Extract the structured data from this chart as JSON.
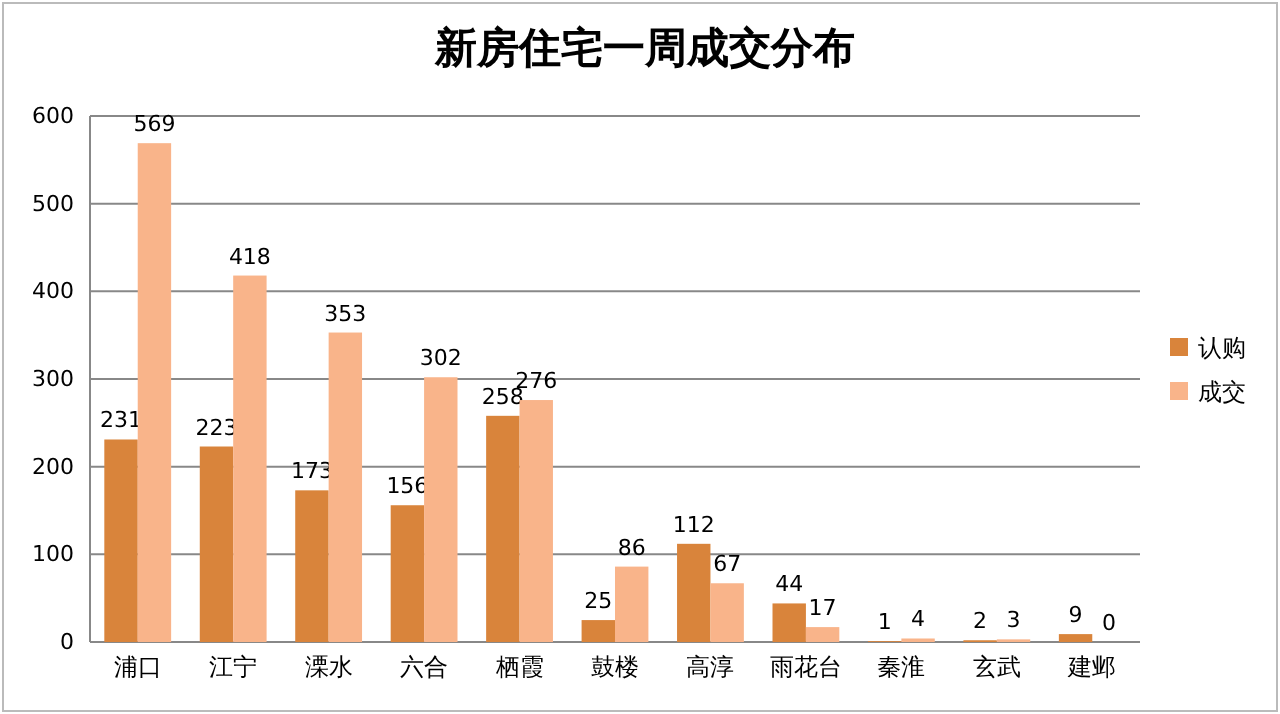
{
  "chart_data": {
    "type": "bar",
    "title": "新房住宅一周成交分布",
    "categories": [
      "浦口",
      "江宁",
      "溧水",
      "六合",
      "栖霞",
      "鼓楼",
      "高淳",
      "雨花台",
      "秦淮",
      "玄武",
      "建邺"
    ],
    "series": [
      {
        "name": "认购",
        "color": "#d9843b",
        "values": [
          231,
          223,
          173,
          156,
          258,
          25,
          112,
          44,
          1,
          2,
          9
        ]
      },
      {
        "name": "成交",
        "color": "#f9b48a",
        "values": [
          569,
          418,
          353,
          302,
          276,
          86,
          67,
          17,
          4,
          3,
          0
        ]
      }
    ],
    "ylim": [
      0,
      600
    ],
    "yticks": [
      0,
      100,
      200,
      300,
      400,
      500,
      600
    ],
    "grid": "y",
    "legend": "right",
    "data_labels": true
  }
}
